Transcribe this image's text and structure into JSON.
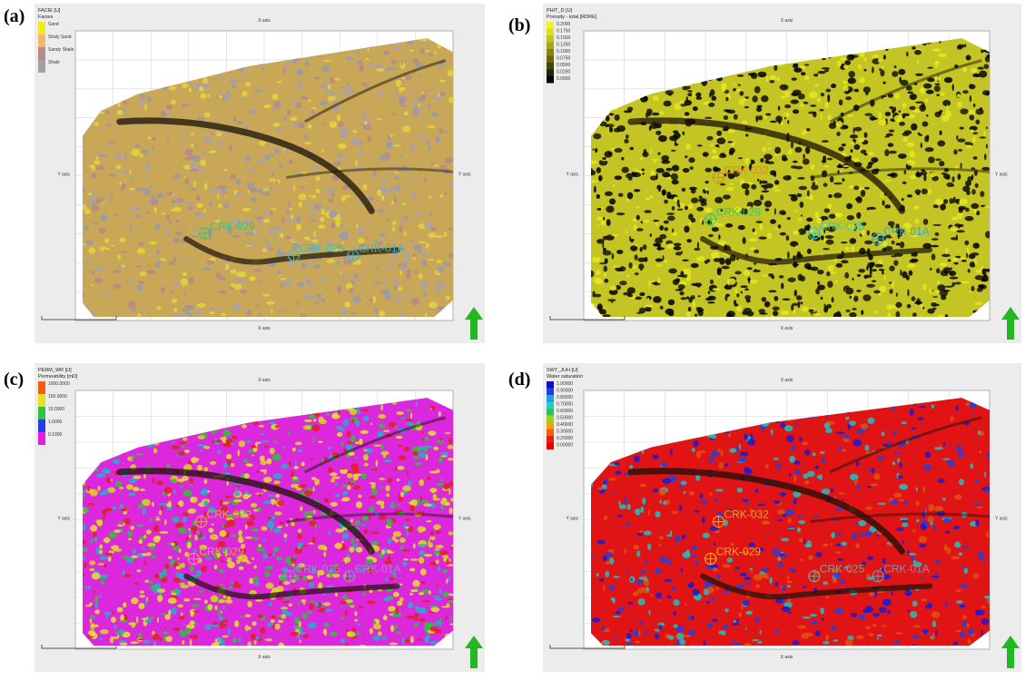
{
  "panels": [
    {
      "label": "(a)",
      "legend": {
        "title": "FACIE [U]",
        "subtitle": "Facies",
        "items": [
          {
            "label": "Sand",
            "color": "#f2ea1c"
          },
          {
            "label": "Shaly Sand",
            "color": "#f0b870"
          },
          {
            "label": "Sandy Shale",
            "color": "#b88a8a"
          },
          {
            "label": "Shale",
            "color": "#a0a0a8"
          }
        ]
      },
      "x_axis": "X axis",
      "y_axis": "Y axis",
      "wells": [
        {
          "name": "CRK-029",
          "x": 0.33,
          "y": 0.7,
          "color": "#30c878"
        },
        {
          "name": "CRK-025",
          "x": 0.57,
          "y": 0.78,
          "color": "#30c8c0"
        },
        {
          "name": "CRK-01A",
          "x": 0.73,
          "y": 0.78,
          "color": "#30b8d0"
        }
      ]
    },
    {
      "label": "(b)",
      "legend": {
        "title": "PHIT_D [U]",
        "subtitle": "Porosity - total [RDRE]",
        "items": [
          {
            "label": "0.2000",
            "color": "#f2f028"
          },
          {
            "label": "0.1750",
            "color": "#dede22"
          },
          {
            "label": "0.1500",
            "color": "#c4c41c"
          },
          {
            "label": "0.1250",
            "color": "#a6a618"
          },
          {
            "label": "0.1000",
            "color": "#868612"
          },
          {
            "label": "0.0750",
            "color": "#66660e"
          },
          {
            "label": "0.0500",
            "color": "#44440a"
          },
          {
            "label": "0.0250",
            "color": "#222206"
          },
          {
            "label": "0.0000",
            "color": "#000000"
          }
        ]
      },
      "x_axis": "X axis",
      "y_axis": "Y axis",
      "wells": [
        {
          "name": "CRK-032",
          "x": 0.32,
          "y": 0.5,
          "color": "#e08a20"
        },
        {
          "name": "CRK-029",
          "x": 0.3,
          "y": 0.65,
          "color": "#30c878"
        },
        {
          "name": "CRK-025",
          "x": 0.56,
          "y": 0.7,
          "color": "#30c8c0"
        },
        {
          "name": "CRK-01A",
          "x": 0.72,
          "y": 0.72,
          "color": "#30a8d8"
        }
      ]
    },
    {
      "label": "(c)",
      "legend": {
        "title": "PERM_WR [U]",
        "subtitle": "Permeability [mD]",
        "items": [
          {
            "label": "1000.0000",
            "color": "#f06010"
          },
          {
            "label": "100.0000",
            "color": "#e8e020"
          },
          {
            "label": "10.0000",
            "color": "#30c040"
          },
          {
            "label": "1.0000",
            "color": "#2040e0"
          },
          {
            "label": "0.1000",
            "color": "#e020e0"
          }
        ]
      },
      "x_axis": "X axis",
      "y_axis": "Y axis",
      "wells": [
        {
          "name": "CRK-032",
          "x": 0.32,
          "y": 0.5,
          "color": "#e8a030"
        },
        {
          "name": "CRK-029",
          "x": 0.3,
          "y": 0.65,
          "color": "#e8a030"
        },
        {
          "name": "CRK-025",
          "x": 0.56,
          "y": 0.72,
          "color": "#9090c0"
        },
        {
          "name": "CRK-01A",
          "x": 0.72,
          "y": 0.72,
          "color": "#9090c0"
        }
      ]
    },
    {
      "label": "(d)",
      "legend": {
        "title": "SWT_JUH [U]",
        "subtitle": "Water saturation",
        "items": [
          {
            "label": "1.00000",
            "color": "#1010c0"
          },
          {
            "label": "0.90000",
            "color": "#2040e0"
          },
          {
            "label": "0.80000",
            "color": "#20a0e0"
          },
          {
            "label": "0.70000",
            "color": "#20d0c0"
          },
          {
            "label": "0.60000",
            "color": "#30c060"
          },
          {
            "label": "0.50000",
            "color": "#a0d020"
          },
          {
            "label": "0.40000",
            "color": "#f0a010"
          },
          {
            "label": "0.30000",
            "color": "#f06010"
          },
          {
            "label": "0.20000",
            "color": "#e82010"
          },
          {
            "label": "0.00000",
            "color": "#e00000"
          }
        ]
      },
      "x_axis": "X axis",
      "y_axis": "Y axis",
      "wells": [
        {
          "name": "CRK-032",
          "x": 0.32,
          "y": 0.5,
          "color": "#e8a030"
        },
        {
          "name": "CRK-029",
          "x": 0.3,
          "y": 0.65,
          "color": "#f0b020"
        },
        {
          "name": "CRK-025",
          "x": 0.56,
          "y": 0.72,
          "color": "#80a090"
        },
        {
          "name": "CRK-01A",
          "x": 0.72,
          "y": 0.72,
          "color": "#8090b0"
        }
      ]
    }
  ]
}
